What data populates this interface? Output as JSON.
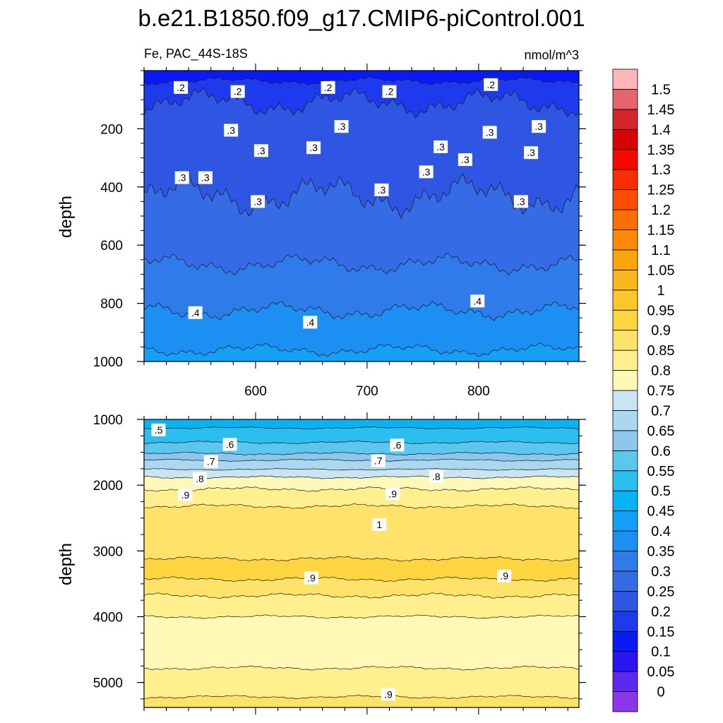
{
  "chart_data": {
    "type": "heatmap",
    "subtype": "filled-contour",
    "title": "b.e21.B1850.f09_g17.CMIP6-piControl.001",
    "left_subtitle": "Fe, PAC_44S-18S",
    "right_subtitle": "nmol/m^3",
    "variable": "Fe",
    "region": "PAC_44S-18S",
    "units": "nmol/m^3",
    "colorbar": {
      "levels": [
        "0",
        "0.05",
        "0.1",
        "0.15",
        "0.2",
        "0.25",
        "0.3",
        "0.35",
        "0.4",
        "0.45",
        "0.5",
        "0.55",
        "0.6",
        "0.65",
        "0.7",
        "0.75",
        "0.8",
        "0.85",
        "0.9",
        "0.95",
        "1",
        "1.05",
        "1.1",
        "1.15",
        "1.2",
        "1.25",
        "1.3",
        "1.35",
        "1.4",
        "1.45",
        "1.5"
      ],
      "colors": [
        "#8b36e8",
        "#5d28f0",
        "#2b15f5",
        "#0a1af5",
        "#1d3bec",
        "#2f56e2",
        "#356be5",
        "#2f7bea",
        "#1b8ff2",
        "#13a0f6",
        "#06b4f5",
        "#2dbef0",
        "#5bc7ef",
        "#8dc7ee",
        "#acd8ef",
        "#c9e5f4",
        "#fff8b6",
        "#ffef8d",
        "#fee269",
        "#fdd541",
        "#fcc72b",
        "#fbb71e",
        "#fca60d",
        "#fb8808",
        "#fb6d05",
        "#fb4b04",
        "#fa2d02",
        "#f70900",
        "#d80303",
        "#d4262a",
        "#e6656c",
        "#fcb6b8"
      ]
    },
    "x_axis": {
      "range": [
        500,
        890
      ],
      "major_ticks": [
        600,
        700,
        800
      ],
      "tick_labels": [
        "600",
        "700",
        "800"
      ],
      "minor_step": 20
    },
    "panels": [
      {
        "name": "upper",
        "ylabel": "depth",
        "ylim": [
          0,
          1000
        ],
        "y_ticks": [
          200,
          400,
          600,
          800,
          1000
        ],
        "y_tick_labels": [
          "200",
          "400",
          "600",
          "800",
          "1000"
        ],
        "contour_labels": [
          {
            "text": ".2",
            "x": 533,
            "y": 58
          },
          {
            "text": ".2",
            "x": 584,
            "y": 72
          },
          {
            "text": ".2",
            "x": 665,
            "y": 58
          },
          {
            "text": ".2",
            "x": 720,
            "y": 72
          },
          {
            "text": ".2",
            "x": 811,
            "y": 48
          },
          {
            "text": ".3",
            "x": 578,
            "y": 205
          },
          {
            "text": ".3",
            "x": 677,
            "y": 192
          },
          {
            "text": ".3",
            "x": 854,
            "y": 192
          },
          {
            "text": ".3",
            "x": 810,
            "y": 212
          },
          {
            "text": ".3",
            "x": 605,
            "y": 275
          },
          {
            "text": ".3",
            "x": 652,
            "y": 265
          },
          {
            "text": ".3",
            "x": 766,
            "y": 262
          },
          {
            "text": ".3",
            "x": 788,
            "y": 306
          },
          {
            "text": ".3",
            "x": 847,
            "y": 282
          },
          {
            "text": ".3",
            "x": 753,
            "y": 348
          },
          {
            "text": ".3",
            "x": 534,
            "y": 368
          },
          {
            "text": ".3",
            "x": 555,
            "y": 368
          },
          {
            "text": ".3",
            "x": 602,
            "y": 450
          },
          {
            "text": ".3",
            "x": 713,
            "y": 410
          },
          {
            "text": ".3",
            "x": 838,
            "y": 450
          },
          {
            "text": ".4",
            "x": 546,
            "y": 832
          },
          {
            "text": ".4",
            "x": 649,
            "y": 865
          },
          {
            "text": ".4",
            "x": 799,
            "y": 792
          }
        ]
      },
      {
        "name": "lower",
        "ylabel": "depth",
        "ylim": [
          1000,
          5380
        ],
        "y_ticks": [
          1000,
          2000,
          3000,
          4000,
          5000
        ],
        "y_tick_labels": [
          "1000",
          "2000",
          "3000",
          "4000",
          "5000"
        ],
        "contour_labels": [
          {
            "text": ".5",
            "x": 513,
            "y": 1160
          },
          {
            "text": ".6",
            "x": 577,
            "y": 1380
          },
          {
            "text": ".6",
            "x": 727,
            "y": 1390
          },
          {
            "text": ".7",
            "x": 560,
            "y": 1640
          },
          {
            "text": ".7",
            "x": 710,
            "y": 1630
          },
          {
            "text": ".8",
            "x": 550,
            "y": 1900
          },
          {
            "text": ".8",
            "x": 762,
            "y": 1870
          },
          {
            "text": ".9",
            "x": 537,
            "y": 2150
          },
          {
            "text": ".9",
            "x": 723,
            "y": 2130
          },
          {
            "text": "1",
            "x": 711,
            "y": 2600
          },
          {
            "text": ".9",
            "x": 650,
            "y": 3410
          },
          {
            "text": ".9",
            "x": 823,
            "y": 3380
          },
          {
            "text": ".9",
            "x": 719,
            "y": 5180
          }
        ]
      }
    ]
  }
}
